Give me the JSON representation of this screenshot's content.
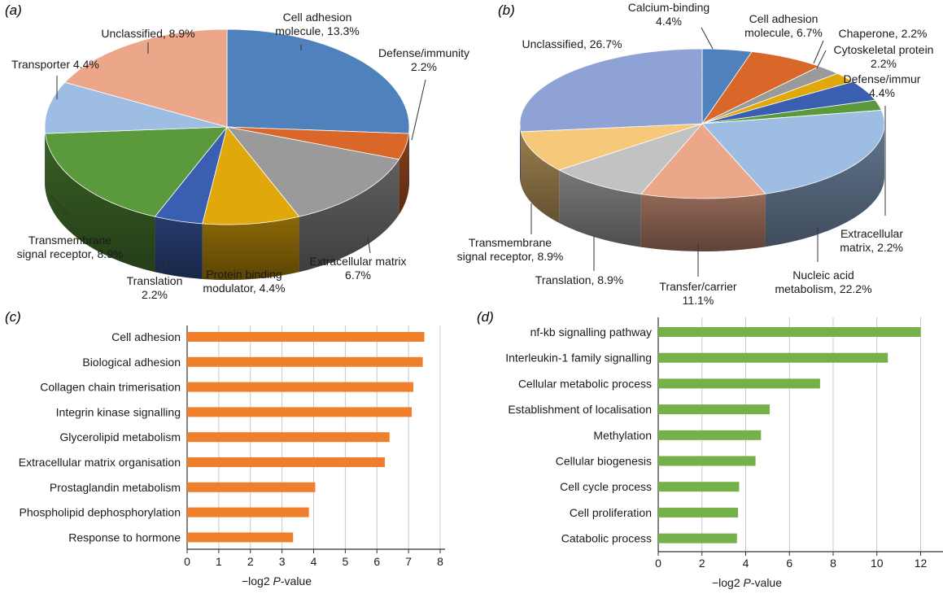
{
  "chart_data": [
    {
      "panel": "(a)",
      "type": "pie",
      "slices": [
        {
          "label": "Cell adhesion molecule, 13.3%",
          "value": 13.3,
          "color": "#4f81bd"
        },
        {
          "label": "Defense/immunity 2.2%",
          "value": 2.2,
          "color": "#d9672a"
        },
        {
          "label": "Extracellular matrix 6.7%",
          "value": 6.7,
          "color": "#9a9a9a"
        },
        {
          "label": "Protein binding modulator, 4.4%",
          "value": 4.4,
          "color": "#e0a80b"
        },
        {
          "label": "Translation 2.2%",
          "value": 2.2,
          "color": "#3b5fb0"
        },
        {
          "label": "Transmembrane signal receptor, 8.9%",
          "value": 8.9,
          "color": "#5b9a3c"
        },
        {
          "label": "Transporter 4.4%",
          "value": 4.4,
          "color": "#9dbde3"
        },
        {
          "label": "Unclassified, 8.9%",
          "value": 8.9,
          "color": "#eca68a"
        }
      ]
    },
    {
      "panel": "(b)",
      "type": "pie",
      "slices": [
        {
          "label": "Calcium-binding 4.4%",
          "value": 4.4,
          "color": "#4f81bd"
        },
        {
          "label": "Cell adhesion molecule, 6.7%",
          "value": 6.7,
          "color": "#d9672a"
        },
        {
          "label": "Chaperone, 2.2%",
          "value": 2.2,
          "color": "#9a9a9a"
        },
        {
          "label": "Cytoskeletal protein 2.2%",
          "value": 2.2,
          "color": "#e0a80b"
        },
        {
          "label": "Defense/immur 4.4%",
          "value": 4.4,
          "color": "#3b5fb0"
        },
        {
          "label": "Extracellular matrix, 2.2%",
          "value": 2.2,
          "color": "#5b9a3c"
        },
        {
          "label": "Nucleic acid metabolism, 22.2%",
          "value": 22.2,
          "color": "#9dbde3"
        },
        {
          "label": "Transfer/carrier 11.1%",
          "value": 11.1,
          "color": "#eca68a"
        },
        {
          "label": "Translation, 8.9%",
          "value": 8.9,
          "color": "#c2c2c2"
        },
        {
          "label": "Transmembrane signal receptor, 8.9%",
          "value": 8.9,
          "color": "#f6c97a"
        },
        {
          "label": "Unclassified, 26.7%",
          "value": 26.7,
          "color": "#8ea2d6"
        }
      ]
    },
    {
      "panel": "(c)",
      "type": "bar",
      "orientation": "horizontal",
      "categories": [
        "Cell adhesion",
        "Biological adhesion",
        "Collagen chain trimerisation",
        "Integrin kinase signalling",
        "Glycerolipid metabolism",
        "Extracellular matrix organisation",
        "Prostaglandin metabolism",
        "Phospholipid dephosphorylation",
        "Response to hormone"
      ],
      "values": [
        7.5,
        7.45,
        7.15,
        7.1,
        6.4,
        6.25,
        4.05,
        3.85,
        3.35
      ],
      "xlabel_prefix": "−log2 ",
      "xlabel_italic": "P",
      "xlabel_suffix": "-value",
      "xticks": [
        "0",
        "1",
        "2",
        "3",
        "4",
        "5",
        "6",
        "7",
        "8"
      ],
      "xlim": [
        0,
        8
      ],
      "grid": true,
      "bar_color": "#f07f2c"
    },
    {
      "panel": "(d)",
      "type": "bar",
      "orientation": "horizontal",
      "categories": [
        "nf-kb signalling pathway",
        "Interleukin-1 family signalling",
        "Cellular metabolic process",
        "Establishment of localisation",
        "Methylation",
        "Cellular biogenesis",
        "Cell cycle process",
        "Cell proliferation",
        "Catabolic process"
      ],
      "values": [
        12,
        10.5,
        7.4,
        5.1,
        4.7,
        4.45,
        3.7,
        3.65,
        3.6
      ],
      "xlabel_prefix": "−log2 ",
      "xlabel_italic": "P",
      "xlabel_suffix": "-value",
      "xticks": [
        "0",
        "2",
        "4",
        "6",
        "8",
        "10",
        "12"
      ],
      "xlim": [
        0,
        12.8
      ],
      "grid": true,
      "bar_color": "#74b14a"
    }
  ]
}
